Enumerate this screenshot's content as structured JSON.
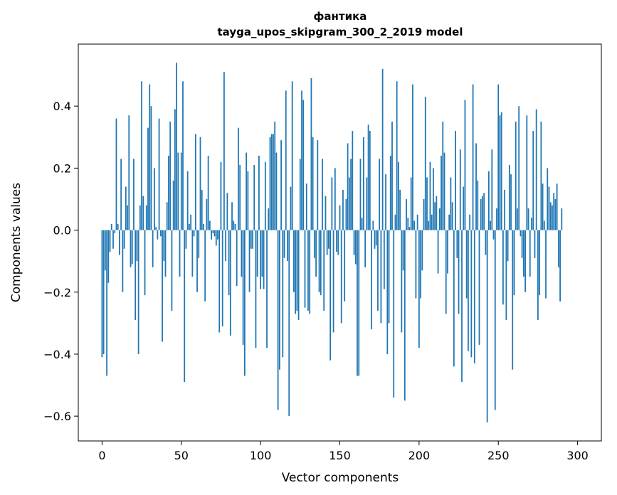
{
  "chart_data": {
    "type": "bar",
    "title": "фантика",
    "subtitle": "tayga_upos_skipgram_300_2_2019 model",
    "xlabel": "Vector components",
    "ylabel": "Components values",
    "xlim": [
      -15,
      315
    ],
    "ylim": [
      -0.68,
      0.6
    ],
    "xticks": [
      0,
      50,
      100,
      150,
      200,
      250,
      300
    ],
    "yticks": [
      -0.6,
      -0.4,
      -0.2,
      0.0,
      0.2,
      0.4
    ],
    "ytick_labels": [
      "−0.6",
      "−0.4",
      "−0.2",
      "0.0",
      "0.2",
      "0.4"
    ],
    "grid": false,
    "bar_color": "#1f77b4",
    "values": [
      -0.41,
      -0.4,
      -0.13,
      -0.47,
      -0.17,
      -0.07,
      0.02,
      -0.06,
      -0.01,
      0.36,
      0.02,
      -0.08,
      0.23,
      -0.2,
      -0.06,
      0.14,
      0.08,
      0.37,
      -0.12,
      -0.11,
      0.23,
      -0.29,
      -0.1,
      -0.4,
      0.08,
      0.48,
      0.11,
      -0.21,
      0.08,
      0.33,
      0.47,
      0.4,
      -0.12,
      0.2,
      0.01,
      -0.03,
      0.36,
      -0.02,
      -0.36,
      -0.1,
      -0.15,
      0.09,
      0.24,
      0.35,
      -0.26,
      0.16,
      0.39,
      0.54,
      0.25,
      -0.15,
      0.25,
      0.48,
      -0.49,
      -0.06,
      0.19,
      0.02,
      0.05,
      -0.15,
      -0.02,
      0.31,
      -0.2,
      -0.09,
      0.3,
      0.13,
      0.02,
      -0.23,
      0.1,
      0.24,
      0.03,
      -0.03,
      -0.01,
      -0.02,
      -0.05,
      -0.03,
      -0.33,
      0.22,
      -0.31,
      0.51,
      -0.1,
      0.12,
      -0.21,
      -0.34,
      0.09,
      0.03,
      0.02,
      -0.18,
      0.33,
      0.21,
      -0.15,
      -0.37,
      -0.47,
      0.25,
      0.19,
      -0.2,
      -0.06,
      -0.06,
      0.21,
      -0.38,
      -0.15,
      0.24,
      -0.19,
      -0.15,
      -0.19,
      0.22,
      -0.38,
      0.07,
      0.3,
      0.31,
      0.31,
      0.35,
      0.25,
      -0.58,
      -0.45,
      0.29,
      -0.41,
      -0.09,
      0.45,
      -0.1,
      -0.6,
      0.14,
      0.48,
      -0.2,
      -0.27,
      -0.26,
      -0.29,
      0.23,
      0.45,
      0.42,
      -0.25,
      0.15,
      -0.26,
      -0.27,
      0.49,
      0.3,
      -0.09,
      -0.15,
      0.29,
      -0.2,
      -0.21,
      0.23,
      -0.26,
      0.11,
      -0.08,
      -0.06,
      -0.42,
      0.17,
      -0.33,
      0.2,
      -0.07,
      -0.08,
      0.08,
      -0.3,
      0.13,
      -0.23,
      0.1,
      0.28,
      0.17,
      0.23,
      0.32,
      -0.08,
      -0.11,
      -0.47,
      -0.47,
      0.23,
      0.04,
      0.3,
      -0.12,
      0.17,
      0.34,
      0.32,
      -0.32,
      0.03,
      -0.06,
      -0.05,
      -0.26,
      0.23,
      -0.3,
      0.52,
      -0.19,
      0.18,
      -0.4,
      -0.3,
      0.24,
      0.35,
      -0.54,
      0.05,
      0.48,
      0.22,
      0.13,
      -0.33,
      -0.13,
      -0.55,
      0.1,
      0.04,
      0.01,
      0.17,
      0.47,
      0.03,
      -0.22,
      0.05,
      -0.38,
      -0.22,
      -0.13,
      0.1,
      0.43,
      0.17,
      0.03,
      0.22,
      0.05,
      0.2,
      0.09,
      0.11,
      -0.14,
      0.07,
      0.24,
      0.35,
      0.25,
      -0.27,
      -0.14,
      0.05,
      0.17,
      0.09,
      -0.44,
      0.32,
      -0.09,
      -0.27,
      0.26,
      -0.49,
      0.14,
      0.42,
      -0.22,
      -0.39,
      0.05,
      -0.41,
      0.47,
      -0.43,
      0.28,
      0.16,
      -0.37,
      0.1,
      0.11,
      0.12,
      -0.08,
      -0.62,
      0.19,
      0.03,
      0.26,
      -0.03,
      -0.58,
      0.07,
      0.47,
      0.37,
      0.38,
      -0.24,
      0.13,
      -0.29,
      -0.1,
      0.21,
      0.18,
      -0.45,
      -0.21,
      0.35,
      0.07,
      0.4,
      -0.02,
      -0.09,
      -0.15,
      -0.2,
      0.37,
      0.07,
      -0.15,
      0.04,
      0.32,
      -0.09,
      0.39,
      -0.29,
      -0.21,
      0.35,
      0.15,
      0.03,
      -0.22,
      0.2,
      0.14,
      0.09,
      0.08,
      0.12,
      0.1,
      0.15,
      -0.12,
      -0.23,
      0.07
    ]
  }
}
